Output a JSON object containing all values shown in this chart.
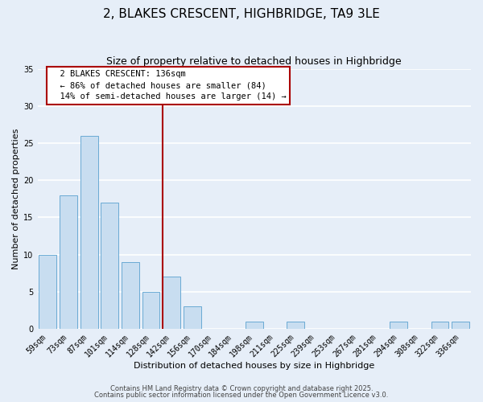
{
  "title": "2, BLAKES CRESCENT, HIGHBRIDGE, TA9 3LE",
  "subtitle": "Size of property relative to detached houses in Highbridge",
  "xlabel": "Distribution of detached houses by size in Highbridge",
  "ylabel": "Number of detached properties",
  "bar_labels": [
    "59sqm",
    "73sqm",
    "87sqm",
    "101sqm",
    "114sqm",
    "128sqm",
    "142sqm",
    "156sqm",
    "170sqm",
    "184sqm",
    "198sqm",
    "211sqm",
    "225sqm",
    "239sqm",
    "253sqm",
    "267sqm",
    "281sqm",
    "294sqm",
    "308sqm",
    "322sqm",
    "336sqm"
  ],
  "bar_values": [
    10,
    18,
    26,
    17,
    9,
    5,
    7,
    3,
    0,
    0,
    1,
    0,
    1,
    0,
    0,
    0,
    0,
    1,
    0,
    1,
    1
  ],
  "bar_color": "#c8ddf0",
  "bar_edge_color": "#6aaad4",
  "background_color": "#e6eef8",
  "grid_color": "#ffffff",
  "vline_color": "#aa0000",
  "annotation_title": "2 BLAKES CRESCENT: 136sqm",
  "annotation_line1": "← 86% of detached houses are smaller (84)",
  "annotation_line2": "14% of semi-detached houses are larger (14) →",
  "footer_line1": "Contains HM Land Registry data © Crown copyright and database right 2025.",
  "footer_line2": "Contains public sector information licensed under the Open Government Licence v3.0.",
  "ylim": [
    0,
    35
  ],
  "yticks": [
    0,
    5,
    10,
    15,
    20,
    25,
    30,
    35
  ],
  "title_fontsize": 11,
  "subtitle_fontsize": 9,
  "axis_label_fontsize": 8,
  "tick_fontsize": 7,
  "annotation_fontsize": 7.5,
  "footer_fontsize": 6
}
